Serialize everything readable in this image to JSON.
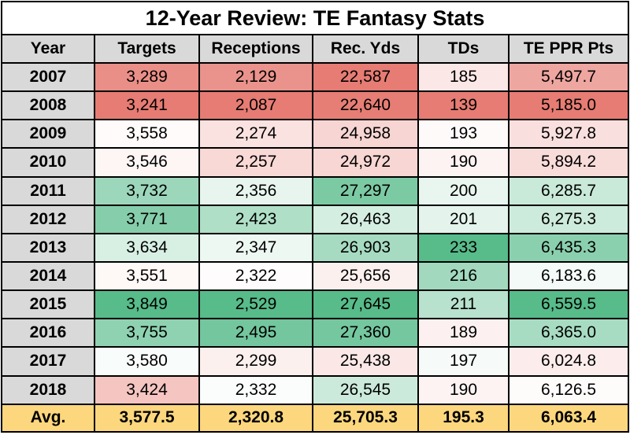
{
  "chart_data": {
    "type": "table",
    "title": "12-Year Review: TE Fantasy Stats",
    "columns": [
      "Year",
      "Targets",
      "Receptions",
      "Rec. Yds",
      "TDs",
      "TE PPR Pts"
    ],
    "rows": [
      [
        "2007",
        "3,289",
        "2,129",
        "22,587",
        "185",
        "5,497.7"
      ],
      [
        "2008",
        "3,241",
        "2,087",
        "22,640",
        "139",
        "5,185.0"
      ],
      [
        "2009",
        "3,558",
        "2,274",
        "24,958",
        "193",
        "5,927.8"
      ],
      [
        "2010",
        "3,546",
        "2,257",
        "24,972",
        "190",
        "5,894.2"
      ],
      [
        "2011",
        "3,732",
        "2,356",
        "27,297",
        "200",
        "6,285.7"
      ],
      [
        "2012",
        "3,771",
        "2,423",
        "26,463",
        "201",
        "6,275.3"
      ],
      [
        "2013",
        "3,634",
        "2,347",
        "26,903",
        "233",
        "6,435.3"
      ],
      [
        "2014",
        "3,551",
        "2,322",
        "25,656",
        "216",
        "6,183.6"
      ],
      [
        "2015",
        "3,849",
        "2,529",
        "27,645",
        "211",
        "6,559.5"
      ],
      [
        "2016",
        "3,755",
        "2,495",
        "27,360",
        "189",
        "6,365.0"
      ],
      [
        "2017",
        "3,580",
        "2,299",
        "25,438",
        "197",
        "6,024.8"
      ],
      [
        "2018",
        "3,424",
        "2,332",
        "26,545",
        "190",
        "6,126.5"
      ]
    ],
    "average_row": [
      "Avg.",
      "3,577.5",
      "2,320.8",
      "25,705.3",
      "195.3",
      "6,063.4"
    ],
    "color_scale": {
      "low": "#e67c73",
      "mid": "#ffffff",
      "high": "#57bb8a"
    },
    "header_color": "#d9d9d9",
    "average_color": "#fdd77e"
  }
}
